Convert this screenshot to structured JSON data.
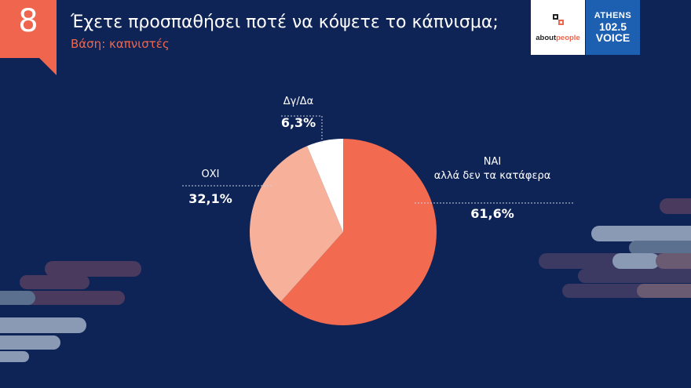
{
  "header": {
    "badge_number": "8",
    "title": "Έχετε προσπαθήσει ποτέ να κόψετε το κάπνισμα;",
    "subtitle": "Βάση: καπνιστές"
  },
  "logos": {
    "aboutpeople_prefix": "about",
    "aboutpeople_suffix": "people",
    "athens_line1": "ATHENS",
    "athens_line2": "102.5",
    "athens_line3": "VOICE"
  },
  "colors": {
    "background": "#0f2456",
    "accent": "#f0654d",
    "light_salmon": "#f7b19b",
    "white": "#ffffff"
  },
  "chart_data": {
    "type": "pie",
    "slices": [
      {
        "label_lines": [
          "ΝΑΙ",
          "αλλά δεν τα κατάφερα"
        ],
        "value": 61.6,
        "value_label": "61,6%",
        "color": "#f26a4f"
      },
      {
        "label_lines": [
          "ΟΧΙ"
        ],
        "value": 32.1,
        "value_label": "32,1%",
        "color": "#f7b19b"
      },
      {
        "label_lines": [
          "Δγ/Δα"
        ],
        "value": 6.3,
        "value_label": "6,3%",
        "color": "#ffffff"
      }
    ],
    "start": "12 o'clock",
    "direction": "clockwise"
  }
}
